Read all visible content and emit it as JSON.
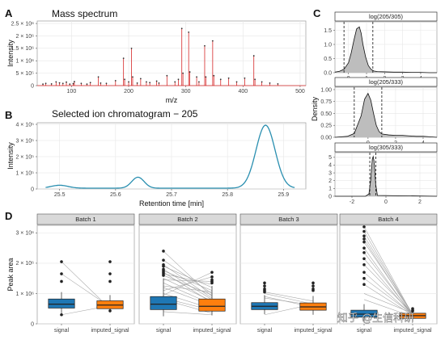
{
  "panel_labels": {
    "A": "A",
    "B": "B",
    "C": "C",
    "D": "D"
  },
  "watermark": "知乎 @生信科研",
  "chart_data": [
    {
      "id": "A",
      "type": "bar",
      "title": "Mass spectrum",
      "xlabel": "m/z",
      "ylabel": "Intensity",
      "xlim": [
        40,
        510
      ],
      "ylim": [
        0,
        2600000
      ],
      "x_ticks": [
        100,
        200,
        300,
        400,
        500
      ],
      "y_ticks": [
        0,
        500000,
        1000000,
        1500000,
        2000000,
        2500000
      ],
      "y_tick_labels": [
        "0",
        "5 × 10⁵",
        "1 × 10⁶",
        "1.5 × 10⁶",
        "2 × 10⁶",
        "2.5 × 10⁶"
      ],
      "grid": true,
      "color": "#d62728",
      "peaks": [
        {
          "x": 50,
          "y": 60000
        },
        {
          "x": 55,
          "y": 90000
        },
        {
          "x": 65,
          "y": 70000
        },
        {
          "x": 73,
          "y": 150000
        },
        {
          "x": 79,
          "y": 110000
        },
        {
          "x": 85,
          "y": 90000
        },
        {
          "x": 91,
          "y": 140000
        },
        {
          "x": 97,
          "y": 60000
        },
        {
          "x": 103,
          "y": 80000
        },
        {
          "x": 105,
          "y": 160000
        },
        {
          "x": 117,
          "y": 90000
        },
        {
          "x": 127,
          "y": 60000
        },
        {
          "x": 133,
          "y": 120000
        },
        {
          "x": 147,
          "y": 350000
        },
        {
          "x": 151,
          "y": 100000
        },
        {
          "x": 161,
          "y": 90000
        },
        {
          "x": 177,
          "y": 200000
        },
        {
          "x": 191,
          "y": 1100000
        },
        {
          "x": 193,
          "y": 250000
        },
        {
          "x": 200,
          "y": 150000
        },
        {
          "x": 205,
          "y": 1500000
        },
        {
          "x": 207,
          "y": 350000
        },
        {
          "x": 215,
          "y": 100000
        },
        {
          "x": 221,
          "y": 280000
        },
        {
          "x": 231,
          "y": 150000
        },
        {
          "x": 237,
          "y": 120000
        },
        {
          "x": 249,
          "y": 180000
        },
        {
          "x": 253,
          "y": 100000
        },
        {
          "x": 267,
          "y": 400000
        },
        {
          "x": 281,
          "y": 150000
        },
        {
          "x": 287,
          "y": 250000
        },
        {
          "x": 293,
          "y": 2300000
        },
        {
          "x": 295,
          "y": 500000
        },
        {
          "x": 305,
          "y": 2150000
        },
        {
          "x": 307,
          "y": 550000
        },
        {
          "x": 319,
          "y": 350000
        },
        {
          "x": 323,
          "y": 150000
        },
        {
          "x": 333,
          "y": 1600000
        },
        {
          "x": 335,
          "y": 350000
        },
        {
          "x": 347,
          "y": 1800000
        },
        {
          "x": 349,
          "y": 400000
        },
        {
          "x": 361,
          "y": 250000
        },
        {
          "x": 375,
          "y": 300000
        },
        {
          "x": 389,
          "y": 150000
        },
        {
          "x": 403,
          "y": 300000
        },
        {
          "x": 419,
          "y": 1200000
        },
        {
          "x": 421,
          "y": 250000
        },
        {
          "x": 433,
          "y": 150000
        },
        {
          "x": 447,
          "y": 100000
        },
        {
          "x": 461,
          "y": 70000
        }
      ]
    },
    {
      "id": "B",
      "type": "line",
      "title": "Selected ion chromatogram − 205",
      "xlabel": "Retention time [min]",
      "ylabel": "Intensity",
      "xlim": [
        25.46,
        25.94
      ],
      "ylim": [
        0,
        410000
      ],
      "x_ticks": [
        25.5,
        25.6,
        25.7,
        25.8,
        25.9
      ],
      "y_ticks": [
        0,
        100000,
        200000,
        300000,
        400000
      ],
      "y_tick_labels": [
        "0",
        "1 × 10⁵",
        "2 × 10⁵",
        "3 × 10⁵",
        "4 × 10⁵"
      ],
      "grid": true,
      "color": "#2a8fb0",
      "baseline": 5000,
      "gaussians": [
        {
          "center": 25.5,
          "height": 18000,
          "width": 0.015
        },
        {
          "center": 25.64,
          "height": 68000,
          "width": 0.011
        },
        {
          "center": 25.868,
          "height": 390000,
          "width": 0.017
        }
      ]
    },
    {
      "id": "C",
      "type": "area",
      "ylabel": "Density",
      "fill": "#bdbdbd",
      "facets": [
        {
          "strip": "log(205/305)",
          "xlim": [
            -0.75,
            4.9
          ],
          "ylim": [
            0,
            1.8
          ],
          "x_ticks": [
            0,
            1,
            2,
            3,
            4
          ],
          "y_ticks": [
            0,
            0.5,
            1.0,
            1.5
          ],
          "y_tick_labels": [
            "0.0",
            "0.5",
            "1.0",
            "1.5"
          ],
          "dashed_lines": [
            -0.25,
            1.35
          ],
          "density": {
            "x": [
              -0.75,
              -0.5,
              -0.25,
              0.0,
              0.15,
              0.3,
              0.45,
              0.6,
              0.7,
              0.8,
              0.95,
              1.1,
              1.25,
              1.4,
              1.6,
              2.0,
              2.5,
              3.0,
              3.5,
              4.0,
              4.5,
              4.9
            ],
            "y": [
              0.02,
              0.05,
              0.12,
              0.35,
              0.7,
              1.15,
              1.55,
              1.62,
              1.4,
              1.0,
              0.55,
              0.25,
              0.12,
              0.06,
              0.04,
              0.03,
              0.02,
              0.02,
              0.01,
              0.01,
              0.0,
              0.0
            ]
          }
        },
        {
          "strip": "log(205/333)",
          "xlim": [
            -2.4,
            5.0
          ],
          "ylim": [
            0,
            1.05
          ],
          "x_ticks": [
            0,
            2,
            4
          ],
          "y_ticks": [
            0,
            0.25,
            0.5,
            0.75,
            1.0
          ],
          "y_tick_labels": [
            "0.00",
            "0.25",
            "0.50",
            "0.75",
            "1.00"
          ],
          "dashed_lines": [
            -1.0,
            1.0
          ],
          "density": {
            "x": [
              -2.4,
              -1.5,
              -1.0,
              -0.5,
              -0.25,
              0.0,
              0.2,
              0.4,
              0.6,
              0.8,
              1.0,
              1.5,
              2.0,
              2.5,
              3.0,
              3.5,
              4.0,
              4.5,
              5.0
            ],
            "y": [
              0.0,
              0.02,
              0.08,
              0.45,
              0.8,
              0.92,
              0.78,
              0.5,
              0.25,
              0.12,
              0.07,
              0.05,
              0.04,
              0.04,
              0.03,
              0.02,
              0.02,
              0.01,
              0.0
            ]
          }
        },
        {
          "strip": "log(305/333)",
          "xlim": [
            -3.0,
            3.0
          ],
          "ylim": [
            0,
            5.6
          ],
          "x_ticks": [
            -2,
            0,
            2
          ],
          "y_ticks": [
            0,
            1,
            2,
            3,
            4,
            5
          ],
          "y_tick_labels": [
            "0",
            "1",
            "2",
            "3",
            "4",
            "5"
          ],
          "dashed_lines": [
            -0.95,
            -0.6
          ],
          "density": {
            "x": [
              -3.0,
              -1.2,
              -1.0,
              -0.9,
              -0.8,
              -0.75,
              -0.7,
              -0.6,
              -0.5,
              3.0
            ],
            "y": [
              0.0,
              0.0,
              0.3,
              2.0,
              4.8,
              5.1,
              4.5,
              1.5,
              0.1,
              0.0
            ]
          }
        }
      ]
    },
    {
      "id": "D",
      "type": "box",
      "ylabel": "Peak area",
      "ylim": [
        0,
        3250000
      ],
      "y_ticks": [
        0,
        1000000,
        2000000,
        3000000
      ],
      "y_tick_labels": [
        "0",
        "1 × 10⁶",
        "2 × 10⁶",
        "3 × 10⁶"
      ],
      "categories": [
        "signal",
        "imputed_signal"
      ],
      "colors": {
        "signal": "#1f77b4",
        "imputed_signal": "#ff7f0e"
      },
      "facets": [
        {
          "strip": "Batch 1",
          "boxes": [
            {
              "q1": 520000,
              "med": 650000,
              "q3": 820000,
              "lo": 280000,
              "hi": 1050000
            },
            {
              "q1": 500000,
              "med": 620000,
              "q3": 760000,
              "lo": 380000,
              "hi": 950000
            }
          ],
          "outliers": [
            [
              2050000,
              1650000,
              1400000,
              300000
            ],
            [
              2050000,
              1650000,
              1400000,
              430000
            ]
          ],
          "links": [
            [
              2050000,
              500000
            ],
            [
              1650000,
              560000
            ],
            [
              300000,
              600000
            ]
          ]
        },
        {
          "strip": "Batch 2",
          "boxes": [
            {
              "q1": 470000,
              "med": 650000,
              "q3": 900000,
              "lo": 250000,
              "hi": 1500000
            },
            {
              "q1": 420000,
              "med": 580000,
              "q3": 820000,
              "lo": 280000,
              "hi": 1250000
            }
          ],
          "outliers": [
            [
              2400000,
              2100000,
              1950000,
              1900000,
              1800000,
              1750000,
              1700000,
              1650000,
              1600000
            ],
            [
              1700000,
              1550000,
              1450000,
              1400000,
              1350000
            ]
          ],
          "links": [
            [
              2400000,
              900000
            ],
            [
              2100000,
              1000000
            ],
            [
              1950000,
              850000
            ],
            [
              1900000,
              1200000
            ],
            [
              1800000,
              800000
            ],
            [
              1750000,
              1100000
            ],
            [
              1700000,
              700000
            ],
            [
              1650000,
              1300000
            ],
            [
              1600000,
              950000
            ],
            [
              1500000,
              750000
            ],
            [
              1450000,
              1400000
            ],
            [
              1350000,
              650000
            ],
            [
              1250000,
              1050000
            ],
            [
              1200000,
              600000
            ],
            [
              1100000,
              1550000
            ],
            [
              1000000,
              500000
            ],
            [
              950000,
              1700000
            ],
            [
              850000,
              450000
            ],
            [
              800000,
              350000
            ],
            [
              400000,
              300000
            ]
          ]
        },
        {
          "strip": "Batch 3",
          "boxes": [
            {
              "q1": 470000,
              "med": 580000,
              "q3": 700000,
              "lo": 320000,
              "hi": 950000
            },
            {
              "q1": 450000,
              "med": 560000,
              "q3": 690000,
              "lo": 300000,
              "hi": 920000
            }
          ],
          "outliers": [
            [
              1350000,
              1250000,
              1150000,
              1100000,
              1050000
            ],
            [
              1350000,
              1250000,
              1150000,
              1100000
            ]
          ],
          "links": [
            [
              1050000,
              750000
            ],
            [
              1000000,
              650000
            ],
            [
              900000,
              550000
            ],
            [
              850000,
              620000
            ],
            [
              300000,
              650000
            ]
          ]
        },
        {
          "strip": "Batch 4",
          "boxes": [
            {
              "q1": 220000,
              "med": 320000,
              "q3": 450000,
              "lo": 50000,
              "hi": 650000
            },
            {
              "q1": 180000,
              "med": 270000,
              "q3": 350000,
              "lo": 80000,
              "hi": 500000
            }
          ],
          "outliers": [
            [
              3200000,
              3050000,
              2900000,
              2800000,
              2700000,
              2500000,
              2350000,
              2150000,
              1950000,
              1700000,
              1500000,
              1300000
            ],
            [
              500000,
              450000,
              420000
            ]
          ],
          "links": [
            [
              3200000,
              300000
            ],
            [
              3050000,
              280000
            ],
            [
              2900000,
              320000
            ],
            [
              2800000,
              260000
            ],
            [
              2700000,
              340000
            ],
            [
              2500000,
              250000
            ],
            [
              2350000,
              300000
            ],
            [
              2150000,
              270000
            ],
            [
              1950000,
              330000
            ],
            [
              1700000,
              290000
            ],
            [
              1500000,
              310000
            ],
            [
              1300000,
              280000
            ],
            [
              1000000,
              350000
            ],
            [
              800000,
              240000
            ]
          ]
        }
      ]
    }
  ]
}
